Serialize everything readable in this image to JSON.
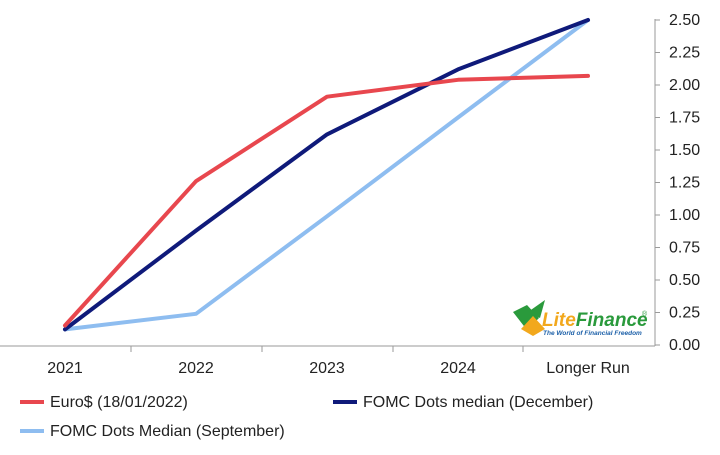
{
  "chart_data": {
    "type": "line",
    "categories": [
      "2021",
      "2022",
      "2023",
      "2024",
      "Longer Run"
    ],
    "ylim": [
      0,
      2.5
    ],
    "yticks": [
      "0.00",
      "0.25",
      "0.50",
      "0.75",
      "1.00",
      "1.25",
      "1.50",
      "1.75",
      "2.00",
      "2.25",
      "2.50"
    ],
    "y_axis_side": "right",
    "grid": false,
    "legend_position": "bottom",
    "series": [
      {
        "name": "Euro$ (18/01/2022)",
        "color": "#e8474e",
        "values": [
          0.15,
          1.26,
          1.91,
          2.04,
          2.07
        ]
      },
      {
        "name": "FOMC Dots median (December)",
        "color": "#0f1a7a",
        "values": [
          0.12,
          0.88,
          1.62,
          2.12,
          2.5
        ]
      },
      {
        "name": "FOMC Dots Median (September)",
        "color": "#8ebdf0",
        "values": [
          0.12,
          0.24,
          0.99,
          1.75,
          2.5
        ]
      }
    ]
  },
  "watermark": {
    "brand_prefix": "Lite",
    "brand_suffix": "Finance",
    "registered": "®",
    "tagline": "The World of Financial Freedom",
    "colors": {
      "prefix": "#f2a81d",
      "suffix": "#2a9a3c",
      "tagline": "#1b5fa8"
    }
  }
}
